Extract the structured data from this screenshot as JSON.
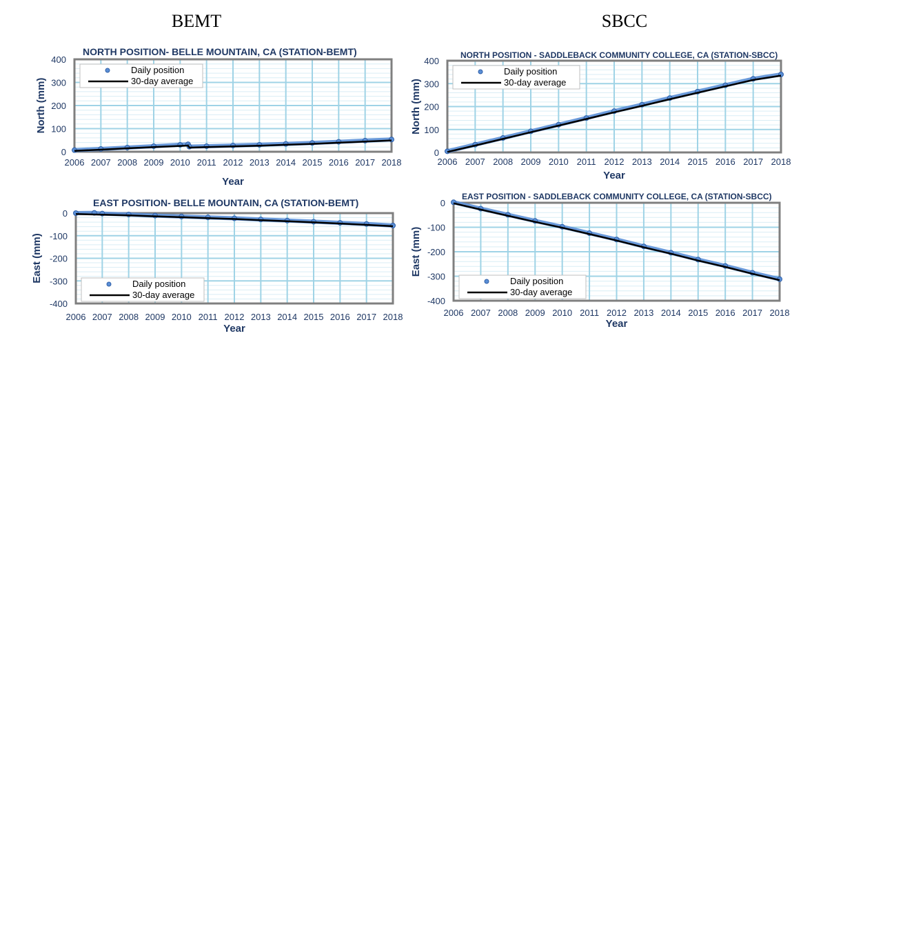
{
  "headings": {
    "left": "BEMT",
    "right": "SBCC"
  },
  "colors": {
    "points": "#5b8fd6",
    "points_edge": "#2f5fa7",
    "average": "#000000",
    "grid_major": "#9fd3e6",
    "grid_minor": "#d9edf5",
    "frame": "#7f7f7f",
    "text": "#1f3864"
  },
  "chart_data": [
    {
      "type": "scatter",
      "title": "NORTH POSITION- BELLE MOUNTAIN, CA (STATION-BEMT)",
      "xlabel": "Year",
      "ylabel": "North (mm)",
      "xlim": [
        2006,
        2018
      ],
      "ylim": [
        0,
        400
      ],
      "xticks": [
        2006,
        2007,
        2008,
        2009,
        2010,
        2011,
        2012,
        2013,
        2014,
        2015,
        2016,
        2017,
        2018
      ],
      "yticks": [
        0,
        100,
        200,
        300,
        400
      ],
      "grid": true,
      "legend_position": "top-left",
      "series": [
        {
          "name": "Daily position",
          "kind": "points",
          "x": [
            2006.0,
            2007.0,
            2008.0,
            2009.0,
            2010.0,
            2010.3,
            2010.35,
            2011.0,
            2012.0,
            2013.0,
            2014.0,
            2015.0,
            2016.0,
            2017.0,
            2018.0
          ],
          "y": [
            7,
            12,
            18,
            24,
            30,
            32,
            22,
            24,
            27,
            30,
            34,
            38,
            43,
            48,
            53
          ]
        },
        {
          "name": "30-day average",
          "kind": "line",
          "x": [
            2006.0,
            2007.0,
            2008.0,
            2009.0,
            2010.0,
            2010.3,
            2010.35,
            2011.0,
            2012.0,
            2013.0,
            2014.0,
            2015.0,
            2016.0,
            2017.0,
            2018.0
          ],
          "y": [
            4,
            9,
            15,
            20,
            25,
            27,
            18,
            20,
            23,
            26,
            30,
            34,
            39,
            44,
            49
          ]
        }
      ]
    },
    {
      "type": "scatter",
      "title": "NORTH POSITION - SADDLEBACK COMMUNITY COLLEGE, CA (STATION-SBCC)",
      "xlabel": "Year",
      "ylabel": "North (mm)",
      "xlim": [
        2006,
        2018
      ],
      "ylim": [
        0,
        400
      ],
      "xticks": [
        2006,
        2007,
        2008,
        2009,
        2010,
        2011,
        2012,
        2013,
        2014,
        2015,
        2016,
        2017,
        2018
      ],
      "yticks": [
        0,
        100,
        200,
        300,
        400
      ],
      "grid": true,
      "legend_position": "top-left",
      "series": [
        {
          "name": "Daily position",
          "kind": "points",
          "x": [
            2006.0,
            2007.0,
            2008.0,
            2009.0,
            2010.0,
            2011.0,
            2012.0,
            2013.0,
            2014.0,
            2015.0,
            2016.0,
            2017.0,
            2018.0
          ],
          "y": [
            5,
            34,
            63,
            92,
            121,
            150,
            180,
            208,
            237,
            265,
            293,
            321,
            340
          ]
        },
        {
          "name": "30-day average",
          "kind": "line",
          "x": [
            2006.0,
            2007.0,
            2008.0,
            2009.0,
            2010.0,
            2011.0,
            2012.0,
            2013.0,
            2014.0,
            2015.0,
            2016.0,
            2017.0,
            2018.0
          ],
          "y": [
            2,
            30,
            59,
            88,
            117,
            146,
            175,
            203,
            232,
            260,
            288,
            316,
            335
          ]
        }
      ]
    },
    {
      "type": "scatter",
      "title": "EAST POSITION- BELLE MOUNTAIN, CA (STATION-BEMT)",
      "xlabel": "Year",
      "ylabel": "East (mm)",
      "xlim": [
        2006,
        2018
      ],
      "ylim": [
        -400,
        0
      ],
      "xticks": [
        2006,
        2007,
        2008,
        2009,
        2010,
        2011,
        2012,
        2013,
        2014,
        2015,
        2016,
        2017,
        2018
      ],
      "yticks": [
        0,
        -100,
        -200,
        -300,
        -400
      ],
      "grid": true,
      "legend_position": "bottom-left",
      "series": [
        {
          "name": "Daily position",
          "kind": "points",
          "x": [
            2006.0,
            2006.7,
            2007.0,
            2008.0,
            2009.0,
            2010.0,
            2011.0,
            2012.0,
            2013.0,
            2014.0,
            2015.0,
            2016.0,
            2017.0,
            2018.0
          ],
          "y": [
            0,
            1,
            -2,
            -6,
            -11,
            -15,
            -19,
            -23,
            -28,
            -33,
            -38,
            -43,
            -48,
            -55
          ]
        },
        {
          "name": "30-day average",
          "kind": "line",
          "x": [
            2006.0,
            2007.0,
            2008.0,
            2009.0,
            2010.0,
            2011.0,
            2012.0,
            2013.0,
            2014.0,
            2015.0,
            2016.0,
            2017.0,
            2018.0
          ],
          "y": [
            -4,
            -7,
            -10,
            -14,
            -18,
            -22,
            -26,
            -31,
            -36,
            -41,
            -46,
            -52,
            -58
          ]
        }
      ]
    },
    {
      "type": "scatter",
      "title": "EAST POSITION - SADDLEBACK COMMUNITY COLLEGE, CA (STATION-SBCC)",
      "xlabel": "Year",
      "ylabel": "East (mm)",
      "xlim": [
        2006,
        2018
      ],
      "ylim": [
        -400,
        0
      ],
      "xticks": [
        2006,
        2007,
        2008,
        2009,
        2010,
        2011,
        2012,
        2013,
        2014,
        2015,
        2016,
        2017,
        2018
      ],
      "yticks": [
        0,
        -100,
        -200,
        -300,
        -400
      ],
      "grid": true,
      "legend_position": "bottom-left",
      "series": [
        {
          "name": "Daily position",
          "kind": "points",
          "x": [
            2006.0,
            2007.0,
            2008.0,
            2009.0,
            2010.0,
            2011.0,
            2012.0,
            2013.0,
            2014.0,
            2015.0,
            2016.0,
            2017.0,
            2018.0
          ],
          "y": [
            2,
            -24,
            -49,
            -74,
            -98,
            -124,
            -150,
            -178,
            -204,
            -232,
            -258,
            -286,
            -312
          ]
        },
        {
          "name": "30-day average",
          "kind": "line",
          "x": [
            2006.0,
            2007.0,
            2008.0,
            2009.0,
            2010.0,
            2011.0,
            2012.0,
            2013.0,
            2014.0,
            2015.0,
            2016.0,
            2017.0,
            2018.0
          ],
          "y": [
            -2,
            -28,
            -53,
            -78,
            -102,
            -128,
            -154,
            -182,
            -208,
            -236,
            -262,
            -290,
            -316
          ]
        }
      ]
    }
  ]
}
